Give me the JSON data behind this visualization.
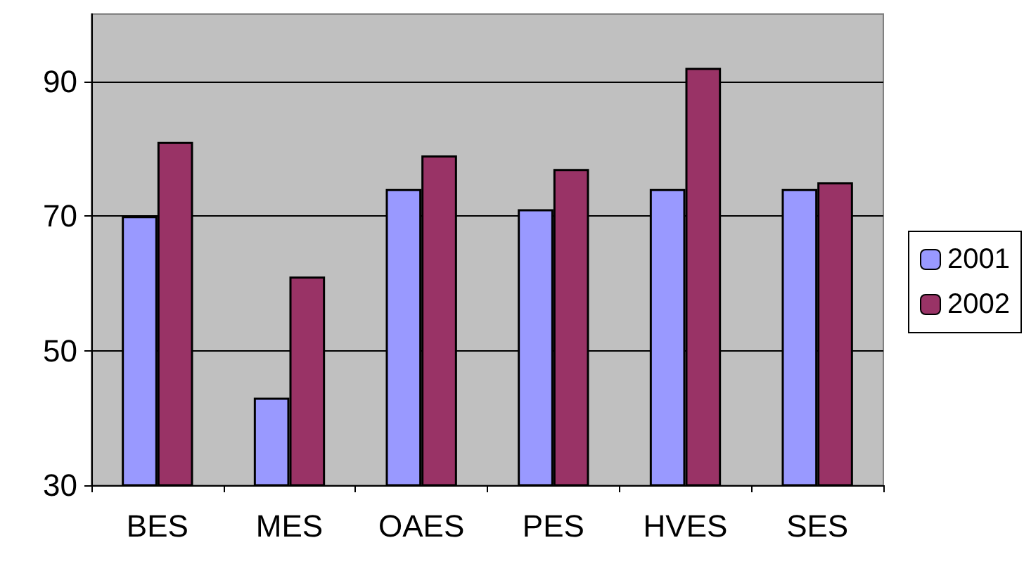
{
  "chart_data": {
    "type": "bar",
    "categories": [
      "BES",
      "MES",
      "OAES",
      "PES",
      "HVES",
      "SES"
    ],
    "series": [
      {
        "name": "2001",
        "color": "#9999ff",
        "values": [
          70,
          43,
          74,
          71,
          74,
          74
        ]
      },
      {
        "name": "2002",
        "color": "#993366",
        "values": [
          81,
          61,
          79,
          77,
          92,
          75
        ]
      }
    ],
    "ylim": [
      30,
      100
    ],
    "yticks": [
      30,
      50,
      70,
      90
    ],
    "grid": "y",
    "legend": "right"
  }
}
